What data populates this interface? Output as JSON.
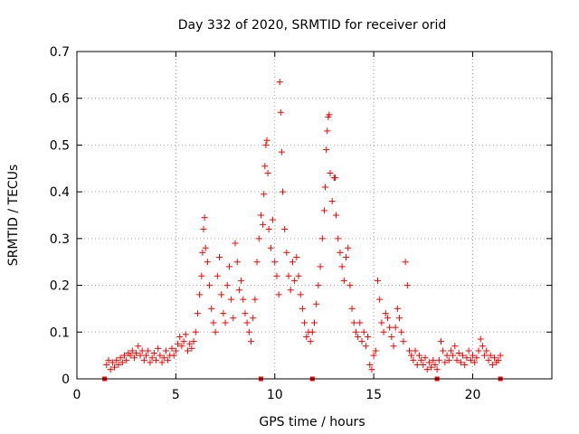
{
  "chart_data": {
    "type": "scatter",
    "title": "Day 332 of 2020, SRMTID for receiver orid",
    "xlabel": "GPS time / hours",
    "ylabel": "SRMTID / TECUs",
    "xlim": [
      0,
      24
    ],
    "ylim": [
      0,
      0.7
    ],
    "xticks": [
      0,
      5,
      10,
      15,
      20
    ],
    "xtick_labels": [
      "0",
      "5",
      "10",
      "15",
      "20"
    ],
    "yticks": [
      0,
      0.1,
      0.2,
      0.3,
      0.4,
      0.5,
      0.6,
      0.7
    ],
    "ytick_labels": [
      "0",
      "0.1",
      "0.2",
      "0.3",
      "0.4",
      "0.5",
      "0.6",
      "0.7"
    ],
    "grid": true,
    "point_color": "#ff0000",
    "series": [
      {
        "name": "SRMTID",
        "marker": "plus",
        "points": [
          [
            1.5,
            0.03
          ],
          [
            1.6,
            0.04
          ],
          [
            1.7,
            0.02
          ],
          [
            1.8,
            0.035
          ],
          [
            1.9,
            0.025
          ],
          [
            2.0,
            0.04
          ],
          [
            2.1,
            0.03
          ],
          [
            2.2,
            0.045
          ],
          [
            2.3,
            0.035
          ],
          [
            2.4,
            0.05
          ],
          [
            2.5,
            0.04
          ],
          [
            2.6,
            0.055
          ],
          [
            2.7,
            0.05
          ],
          [
            2.8,
            0.06
          ],
          [
            2.9,
            0.045
          ],
          [
            3.0,
            0.055
          ],
          [
            3.1,
            0.07
          ],
          [
            3.2,
            0.05
          ],
          [
            3.3,
            0.06
          ],
          [
            3.4,
            0.04
          ],
          [
            3.5,
            0.05
          ],
          [
            3.6,
            0.06
          ],
          [
            3.7,
            0.035
          ],
          [
            3.8,
            0.045
          ],
          [
            3.9,
            0.055
          ],
          [
            4.0,
            0.04
          ],
          [
            4.1,
            0.065
          ],
          [
            4.2,
            0.05
          ],
          [
            4.3,
            0.035
          ],
          [
            4.4,
            0.045
          ],
          [
            4.5,
            0.06
          ],
          [
            4.6,
            0.04
          ],
          [
            4.7,
            0.05
          ],
          [
            4.8,
            0.065
          ],
          [
            4.9,
            0.05
          ],
          [
            5.0,
            0.06
          ],
          [
            5.1,
            0.075
          ],
          [
            5.2,
            0.09
          ],
          [
            5.3,
            0.07
          ],
          [
            5.4,
            0.08
          ],
          [
            5.5,
            0.095
          ],
          [
            5.6,
            0.06
          ],
          [
            5.7,
            0.075
          ],
          [
            5.8,
            0.065
          ],
          [
            5.9,
            0.08
          ],
          [
            6.0,
            0.1
          ],
          [
            6.1,
            0.14
          ],
          [
            6.2,
            0.18
          ],
          [
            6.3,
            0.22
          ],
          [
            6.35,
            0.27
          ],
          [
            6.4,
            0.32
          ],
          [
            6.45,
            0.345
          ],
          [
            6.5,
            0.28
          ],
          [
            6.6,
            0.25
          ],
          [
            6.7,
            0.2
          ],
          [
            6.8,
            0.15
          ],
          [
            6.9,
            0.12
          ],
          [
            7.0,
            0.1
          ],
          [
            7.1,
            0.22
          ],
          [
            7.2,
            0.26
          ],
          [
            7.3,
            0.18
          ],
          [
            7.4,
            0.14
          ],
          [
            7.5,
            0.12
          ],
          [
            7.6,
            0.2
          ],
          [
            7.7,
            0.24
          ],
          [
            7.8,
            0.17
          ],
          [
            7.9,
            0.13
          ],
          [
            8.0,
            0.29
          ],
          [
            8.1,
            0.25
          ],
          [
            8.2,
            0.19
          ],
          [
            8.3,
            0.21
          ],
          [
            8.4,
            0.17
          ],
          [
            8.5,
            0.14
          ],
          [
            8.6,
            0.12
          ],
          [
            8.7,
            0.1
          ],
          [
            8.8,
            0.08
          ],
          [
            8.9,
            0.13
          ],
          [
            9.0,
            0.17
          ],
          [
            9.1,
            0.25
          ],
          [
            9.2,
            0.3
          ],
          [
            9.3,
            0.35
          ],
          [
            9.4,
            0.33
          ],
          [
            9.45,
            0.395
          ],
          [
            9.5,
            0.455
          ],
          [
            9.55,
            0.5
          ],
          [
            9.6,
            0.51
          ],
          [
            9.65,
            0.44
          ],
          [
            9.7,
            0.32
          ],
          [
            9.8,
            0.28
          ],
          [
            9.9,
            0.34
          ],
          [
            10.0,
            0.25
          ],
          [
            10.1,
            0.22
          ],
          [
            10.2,
            0.18
          ],
          [
            10.25,
            0.635
          ],
          [
            10.3,
            0.57
          ],
          [
            10.35,
            0.485
          ],
          [
            10.4,
            0.4
          ],
          [
            10.5,
            0.32
          ],
          [
            10.6,
            0.27
          ],
          [
            10.7,
            0.22
          ],
          [
            10.8,
            0.19
          ],
          [
            10.9,
            0.25
          ],
          [
            11.0,
            0.21
          ],
          [
            11.1,
            0.26
          ],
          [
            11.2,
            0.22
          ],
          [
            11.3,
            0.18
          ],
          [
            11.4,
            0.15
          ],
          [
            11.5,
            0.12
          ],
          [
            11.6,
            0.09
          ],
          [
            11.7,
            0.1
          ],
          [
            11.8,
            0.08
          ],
          [
            11.9,
            0.1
          ],
          [
            12.0,
            0.12
          ],
          [
            12.1,
            0.16
          ],
          [
            12.2,
            0.2
          ],
          [
            12.3,
            0.24
          ],
          [
            12.4,
            0.3
          ],
          [
            12.5,
            0.36
          ],
          [
            12.55,
            0.41
          ],
          [
            12.6,
            0.49
          ],
          [
            12.65,
            0.53
          ],
          [
            12.7,
            0.56
          ],
          [
            12.75,
            0.565
          ],
          [
            12.8,
            0.44
          ],
          [
            12.9,
            0.38
          ],
          [
            13.0,
            0.43
          ],
          [
            13.05,
            0.43
          ],
          [
            13.1,
            0.35
          ],
          [
            13.2,
            0.3
          ],
          [
            13.3,
            0.27
          ],
          [
            13.4,
            0.24
          ],
          [
            13.5,
            0.21
          ],
          [
            13.6,
            0.26
          ],
          [
            13.7,
            0.28
          ],
          [
            13.8,
            0.2
          ],
          [
            13.9,
            0.15
          ],
          [
            14.0,
            0.12
          ],
          [
            14.1,
            0.1
          ],
          [
            14.2,
            0.09
          ],
          [
            14.3,
            0.12
          ],
          [
            14.4,
            0.08
          ],
          [
            14.5,
            0.1
          ],
          [
            14.6,
            0.07
          ],
          [
            14.7,
            0.09
          ],
          [
            14.8,
            0.03
          ],
          [
            14.9,
            0.02
          ],
          [
            15.0,
            0.05
          ],
          [
            15.1,
            0.06
          ],
          [
            15.2,
            0.21
          ],
          [
            15.3,
            0.17
          ],
          [
            15.4,
            0.12
          ],
          [
            15.5,
            0.1
          ],
          [
            15.6,
            0.14
          ],
          [
            15.7,
            0.13
          ],
          [
            15.8,
            0.11
          ],
          [
            15.9,
            0.09
          ],
          [
            16.0,
            0.07
          ],
          [
            16.1,
            0.11
          ],
          [
            16.2,
            0.15
          ],
          [
            16.3,
            0.13
          ],
          [
            16.4,
            0.1
          ],
          [
            16.5,
            0.08
          ],
          [
            16.6,
            0.25
          ],
          [
            16.7,
            0.2
          ],
          [
            16.8,
            0.06
          ],
          [
            16.9,
            0.05
          ],
          [
            17.0,
            0.04
          ],
          [
            17.1,
            0.06
          ],
          [
            17.2,
            0.03
          ],
          [
            17.3,
            0.05
          ],
          [
            17.4,
            0.04
          ],
          [
            17.5,
            0.03
          ],
          [
            17.6,
            0.045
          ],
          [
            17.7,
            0.02
          ],
          [
            17.8,
            0.035
          ],
          [
            17.9,
            0.025
          ],
          [
            18.0,
            0.04
          ],
          [
            18.1,
            0.03
          ],
          [
            18.2,
            0.02
          ],
          [
            18.3,
            0.04
          ],
          [
            18.4,
            0.08
          ],
          [
            18.5,
            0.06
          ],
          [
            18.6,
            0.035
          ],
          [
            18.7,
            0.05
          ],
          [
            18.8,
            0.04
          ],
          [
            18.9,
            0.06
          ],
          [
            19.0,
            0.05
          ],
          [
            19.1,
            0.07
          ],
          [
            19.2,
            0.04
          ],
          [
            19.3,
            0.055
          ],
          [
            19.4,
            0.035
          ],
          [
            19.5,
            0.05
          ],
          [
            19.6,
            0.03
          ],
          [
            19.7,
            0.045
          ],
          [
            19.8,
            0.06
          ],
          [
            19.9,
            0.04
          ],
          [
            20.0,
            0.05
          ],
          [
            20.1,
            0.035
          ],
          [
            20.2,
            0.045
          ],
          [
            20.3,
            0.06
          ],
          [
            20.4,
            0.085
          ],
          [
            20.5,
            0.07
          ],
          [
            20.6,
            0.05
          ],
          [
            20.7,
            0.06
          ],
          [
            20.8,
            0.04
          ],
          [
            20.9,
            0.05
          ],
          [
            21.0,
            0.03
          ],
          [
            21.1,
            0.045
          ],
          [
            21.2,
            0.035
          ],
          [
            21.3,
            0.04
          ],
          [
            21.4,
            0.05
          ]
        ]
      }
    ],
    "axis_markers_x": [
      1.4,
      9.3,
      11.9,
      18.2,
      21.4
    ]
  }
}
